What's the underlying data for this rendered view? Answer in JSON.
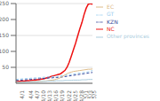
{
  "chart_data": {
    "type": "line",
    "categories": [
      null,
      null,
      "4/1",
      null,
      null,
      null,
      "4/4",
      null,
      null,
      "4/7",
      null,
      null,
      "4/10",
      null,
      null,
      "4/13",
      null,
      null,
      "4/16",
      null,
      null,
      "4/19",
      null,
      null,
      "4/22",
      null,
      null,
      "4/25",
      null,
      null,
      "4/28",
      null,
      "5/1",
      null,
      "5/3",
      null,
      "5/5"
    ],
    "series": [
      {
        "name": "NC",
        "color": "#ee1111",
        "line_style": "solid",
        "values": [
          5,
          6,
          6,
          7,
          7,
          8,
          8,
          9,
          10,
          10,
          11,
          12,
          13,
          14,
          16,
          18,
          20,
          22,
          24,
          26,
          28,
          30,
          35,
          40,
          50,
          65,
          85,
          105,
          125,
          148,
          170,
          190,
          215,
          235,
          248,
          250,
          248
        ]
      },
      {
        "name": "GT",
        "color": "#99ccee",
        "line_style": "dashed",
        "values": [
          12,
          13,
          13,
          14,
          14,
          15,
          15,
          16,
          16,
          17,
          17,
          18,
          18,
          19,
          19,
          20,
          20,
          21,
          21,
          22,
          22,
          23,
          24,
          25,
          26,
          27,
          28,
          29,
          30,
          31,
          32,
          33,
          34,
          35,
          36,
          38,
          40
        ]
      },
      {
        "name": "KZN",
        "color": "#334499",
        "line_style": "dashed",
        "values": [
          9,
          9,
          10,
          10,
          11,
          11,
          12,
          12,
          13,
          13,
          14,
          14,
          15,
          15,
          16,
          16,
          17,
          17,
          18,
          18,
          19,
          19,
          20,
          21,
          22,
          23,
          24,
          25,
          26,
          27,
          28,
          29,
          30,
          31,
          32,
          33,
          34
        ]
      },
      {
        "name": "EC",
        "color": "#ddbb88",
        "line_style": "solid",
        "values": [
          2,
          2,
          3,
          3,
          3,
          4,
          4,
          4,
          5,
          5,
          5,
          6,
          6,
          7,
          7,
          8,
          9,
          10,
          11,
          13,
          15,
          18,
          22,
          26,
          30,
          33,
          35,
          37,
          38,
          39,
          40,
          41,
          42,
          43,
          44,
          44,
          45
        ]
      },
      {
        "name": "Other provinces",
        "color": "#aaccdd",
        "line_style": "solid",
        "values": [
          3,
          3,
          3,
          4,
          4,
          4,
          4,
          5,
          5,
          5,
          5,
          6,
          6,
          6,
          6,
          7,
          7,
          7,
          7,
          8,
          8,
          8,
          8,
          9,
          9,
          9,
          9,
          10,
          10,
          10,
          10,
          11,
          11,
          11,
          12,
          12,
          12
        ]
      }
    ],
    "ylim": [
      0,
      250
    ],
    "yticks": [
      50,
      100,
      150,
      200,
      250
    ],
    "grid": true,
    "legend": "upper right"
  }
}
